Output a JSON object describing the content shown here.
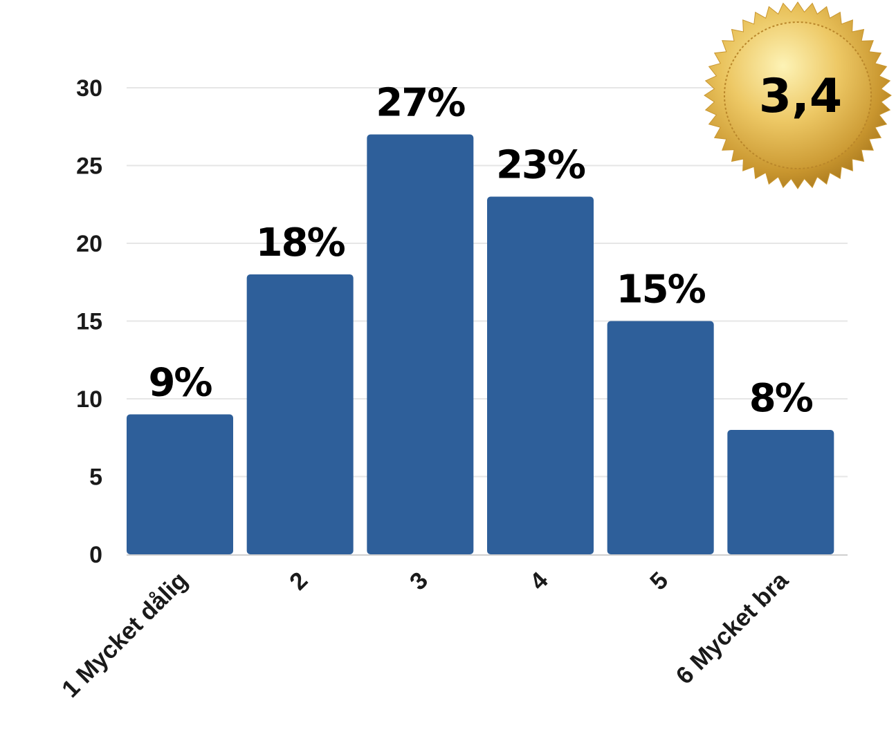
{
  "chart_data": {
    "type": "bar",
    "categories": [
      "1 Mycket dålig",
      "2",
      "3",
      "4",
      "5",
      "6 Mycket bra"
    ],
    "values": [
      9,
      18,
      27,
      23,
      15,
      8
    ],
    "data_labels": [
      "9%",
      "18%",
      "27%",
      "23%",
      "15%",
      "8%"
    ],
    "ylim": [
      0,
      30
    ],
    "y_ticks": [
      "0",
      "5",
      "10",
      "15",
      "20",
      "25",
      "30"
    ],
    "grid": true,
    "bar_color": "#2e5f9a",
    "grid_color": "#e6e6e6"
  },
  "badge": {
    "text": "3,4",
    "icon": "gold-seal-icon",
    "color": "#e0b64a"
  }
}
